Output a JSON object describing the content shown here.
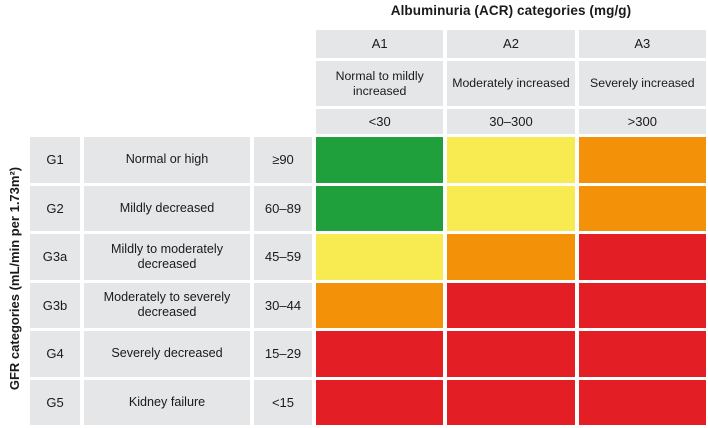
{
  "chart_data": {
    "type": "heatmap",
    "title": "Albuminuria (ACR) categories (mg/g)",
    "ylabel": "GFR categories (mL/min per 1.73m²)",
    "legend_position": "none",
    "grid_lines": "off",
    "columns": [
      {
        "code": "A1",
        "label": "Normal to mildly increased",
        "range": "<30"
      },
      {
        "code": "A2",
        "label": "Moderately increased",
        "range": "30–300"
      },
      {
        "code": "A3",
        "label": "Severely increased",
        "range": ">300"
      }
    ],
    "rows": [
      {
        "code": "G1",
        "label": "Normal or high",
        "range": "≥90",
        "risk": [
          "green",
          "yellow",
          "orange"
        ]
      },
      {
        "code": "G2",
        "label": "Mildly decreased",
        "range": "60–89",
        "risk": [
          "green",
          "yellow",
          "orange"
        ]
      },
      {
        "code": "G3a",
        "label": "Mildly to moderately decreased",
        "range": "45–59",
        "risk": [
          "yellow",
          "orange",
          "red"
        ]
      },
      {
        "code": "G3b",
        "label": "Moderately to severely decreased",
        "range": "30–44",
        "risk": [
          "orange",
          "red",
          "red"
        ]
      },
      {
        "code": "G4",
        "label": "Severely decreased",
        "range": "15–29",
        "risk": [
          "red",
          "red",
          "red"
        ]
      },
      {
        "code": "G5",
        "label": "Kidney failure",
        "range": "<15",
        "risk": [
          "red",
          "red",
          "red"
        ]
      }
    ],
    "risk_colors": {
      "green": "#1FA03C",
      "yellow": "#F7EB51",
      "orange": "#F39208",
      "red": "#E31E25"
    },
    "header_bg": "#E5E6E7",
    "text_color": "#1A1A1A"
  }
}
